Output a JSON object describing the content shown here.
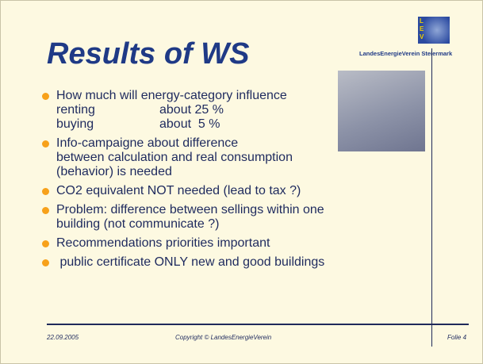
{
  "header": {
    "title": "Results of WS",
    "logo_letters": [
      "L",
      "E",
      "V"
    ],
    "logo_caption": "LandesEnergieVerein Steiermark"
  },
  "bullets": [
    {
      "lines": [
        "How much will energy-category influence"
      ],
      "rows": [
        [
          "renting",
          "about 25 %"
        ],
        [
          "buying",
          "about  5 %"
        ]
      ]
    },
    {
      "lines": [
        "Info-campaigne about difference",
        "between calculation and real consumption",
        "(behavior) is needed"
      ]
    },
    {
      "lines": [
        "CO2 equivalent NOT needed (lead to tax ?)"
      ]
    },
    {
      "lines": [
        "Problem: difference between sellings within one",
        "building (not communicate ?)"
      ]
    },
    {
      "lines": [
        "Recommendations priorities important"
      ]
    },
    {
      "lines": [
        " public certificate ONLY new and good buildings"
      ]
    }
  ],
  "footer": {
    "date": "22.09.2005",
    "copyright": "Copyright © LandesEnergieVerein",
    "page": "Folie 4"
  }
}
